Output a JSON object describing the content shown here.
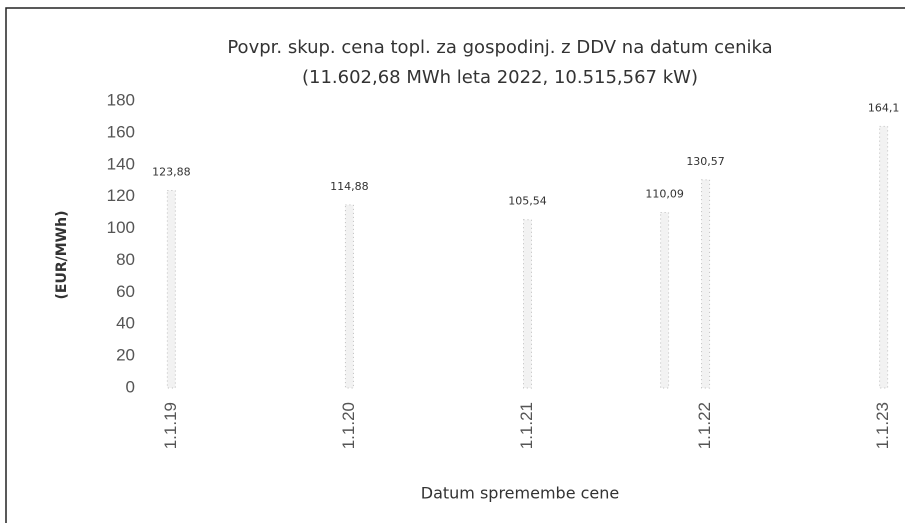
{
  "chart_data": {
    "type": "bar",
    "title": "Povpr. skup. cena topl. za gospodinj. z DDV na datum cenika",
    "subtitle": "(11.602,68 MWh leta 2022, 10.515,567 kW)",
    "y_label": "(EUR/MWh)",
    "x_label": "Datum spremembe cene",
    "x": [
      2019,
      2020,
      2021,
      2021.77,
      2022,
      2023
    ],
    "values": [
      123.88,
      114.88,
      105.54,
      110.09,
      130.57,
      164.1
    ],
    "value_labels": [
      "123,88",
      "114,88",
      "105,54",
      "110,09",
      "130,57",
      "164,1"
    ],
    "color": "#bdbdbd",
    "xlim": [
      2018.88,
      2023.12
    ],
    "xticks": [
      {
        "value": 2019,
        "label": "1.1.19"
      },
      {
        "value": 2020,
        "label": "1.1.20"
      },
      {
        "value": 2021,
        "label": "1.1.21"
      },
      {
        "value": 2022,
        "label": "1.1.22"
      },
      {
        "value": 2023,
        "label": "1.1.23"
      }
    ],
    "ylim": [
      0,
      180
    ],
    "yticks": [
      0,
      20,
      40,
      60,
      80,
      100,
      120,
      140,
      160,
      180
    ],
    "grid": false
  }
}
